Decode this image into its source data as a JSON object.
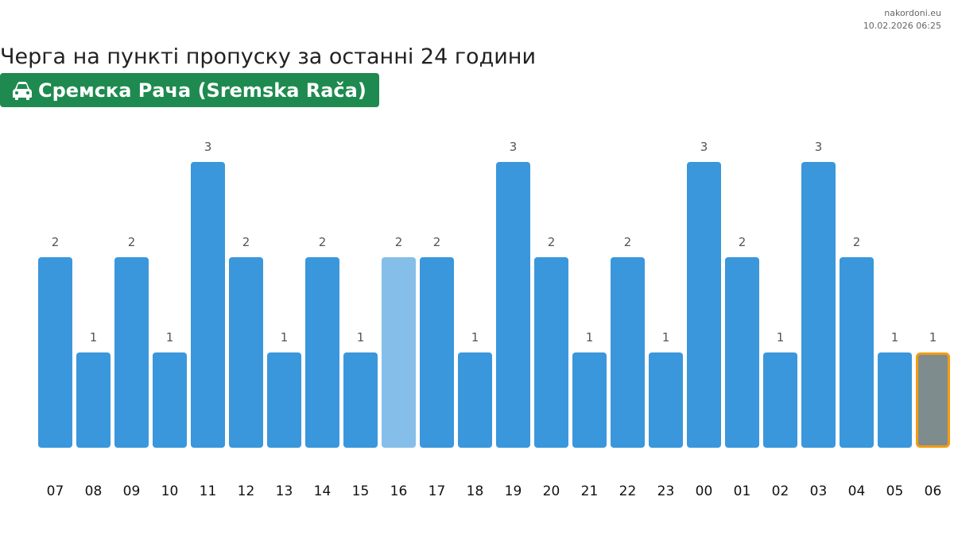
{
  "header": {
    "site": "nakordoni.eu",
    "timestamp": "10.02.2026 06:25",
    "title": "Черга на пункті пропуску за останні 24 години",
    "checkpoint": "Сремска Рача (Sremska Rača)",
    "checkpoint_icon": "car-icon"
  },
  "colors": {
    "bar": "#3a97db",
    "bar_highlight": "#85bfe9",
    "bar_current": "#7f8c8d",
    "bar_current_border": "#f39c12",
    "badge": "#1e8a4f"
  },
  "chart_data": {
    "type": "bar",
    "categories": [
      "07",
      "08",
      "09",
      "10",
      "11",
      "12",
      "13",
      "14",
      "15",
      "16",
      "17",
      "18",
      "19",
      "20",
      "21",
      "22",
      "23",
      "00",
      "01",
      "02",
      "03",
      "04",
      "05",
      "06"
    ],
    "values": [
      2,
      1,
      2,
      1,
      3,
      2,
      1,
      2,
      1,
      2,
      2,
      1,
      3,
      2,
      1,
      2,
      1,
      3,
      2,
      1,
      3,
      2,
      1,
      1
    ],
    "highlight_index": 9,
    "current_index": 23,
    "ylim": [
      0,
      3
    ],
    "grid": false,
    "legend": "none"
  }
}
